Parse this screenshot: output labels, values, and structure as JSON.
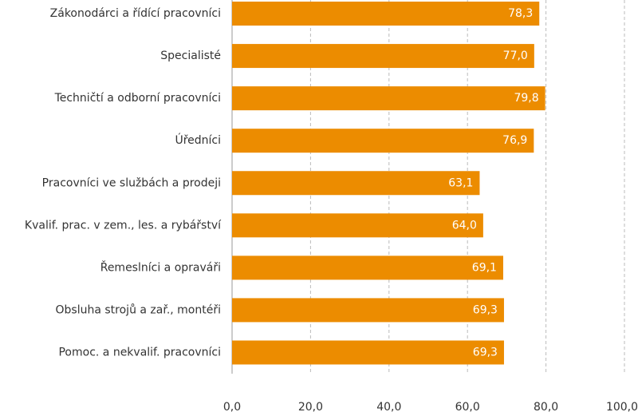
{
  "chart_data": {
    "type": "bar",
    "orientation": "horizontal",
    "categories": [
      "Zákonodárci a řídící pracovníci",
      "Specialisté",
      "Techničtí a odborní pracovníci",
      "Úředníci",
      "Pracovníci ve službách a prodeji",
      "Kvalif. prac. v zem., les. a rybářství",
      "Řemeslníci a opraváři",
      "Obsluha strojů a zař., montéři",
      "Pomoc. a nekvalif. pracovníci"
    ],
    "values": [
      78.3,
      77.0,
      79.8,
      76.9,
      63.1,
      64.0,
      69.1,
      69.3,
      69.3
    ],
    "value_labels": [
      "78,3",
      "77,0",
      "79,8",
      "76,9",
      "63,1",
      "64,0",
      "69,1",
      "69,3",
      "69,3"
    ],
    "color": "#ec8c00",
    "xlim": [
      0,
      100
    ],
    "xticks": [
      {
        "value": 0,
        "label": "0,0"
      },
      {
        "value": 20,
        "label": "20,0"
      },
      {
        "value": 40,
        "label": "40,0"
      },
      {
        "value": 60,
        "label": "60,0"
      },
      {
        "value": 80,
        "label": "80,0"
      },
      {
        "value": 100,
        "label": "100,0"
      }
    ],
    "grid": true
  }
}
